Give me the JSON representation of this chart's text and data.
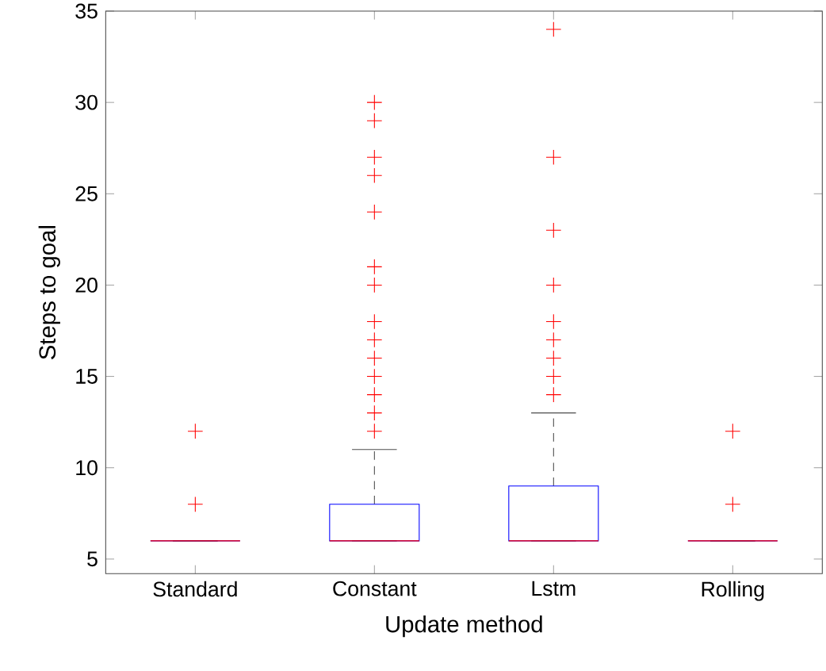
{
  "chart_data": {
    "type": "box",
    "xlabel": "Update method",
    "ylabel": "Steps to goal",
    "categories": [
      "Standard",
      "Constant",
      "Lstm",
      "Rolling"
    ],
    "color": "#0000ff",
    "ylim": [
      4.2,
      35
    ],
    "yticks": [
      5,
      10,
      15,
      20,
      25,
      30,
      35
    ],
    "boxes": [
      {
        "low": 6,
        "q1": 6,
        "median": 6,
        "q3": 6,
        "high": 6,
        "outliers": [
          8,
          12
        ]
      },
      {
        "low": 6,
        "q1": 6,
        "median": 6,
        "q3": 8,
        "high": 11,
        "outliers": [
          12,
          13,
          14,
          15,
          16,
          17,
          18,
          20,
          21,
          24,
          26,
          27,
          29,
          30
        ]
      },
      {
        "low": 6,
        "q1": 6,
        "median": 6,
        "q3": 9,
        "high": 13,
        "outliers": [
          14,
          15,
          16,
          17,
          18,
          20,
          23,
          27,
          34
        ]
      },
      {
        "low": 6,
        "q1": 6,
        "median": 6,
        "q3": 6,
        "high": 6,
        "outliers": [
          8,
          12
        ]
      }
    ]
  }
}
